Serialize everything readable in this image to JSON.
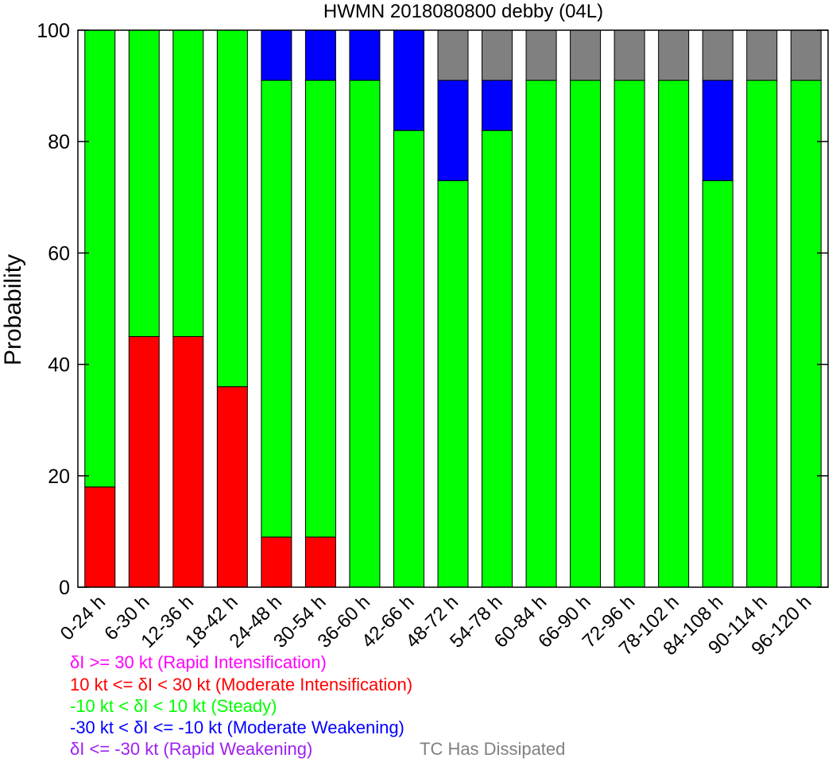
{
  "chart_data": {
    "type": "bar",
    "stacked": true,
    "title": "HWMN 2018080800 debby (04L)",
    "xlabel": "",
    "ylabel": "Probability",
    "ylim": [
      0,
      100
    ],
    "yticks": [
      0,
      20,
      40,
      60,
      80,
      100
    ],
    "grid": false,
    "legend_position": "bottom-left",
    "categories": [
      "0-24 h",
      "6-30 h",
      "12-36 h",
      "18-42 h",
      "24-48 h",
      "30-54 h",
      "36-60 h",
      "42-66 h",
      "48-72 h",
      "54-78 h",
      "60-84 h",
      "66-90 h",
      "72-96 h",
      "78-102 h",
      "84-108 h",
      "90-114 h",
      "96-120 h"
    ],
    "series": [
      {
        "name": "δI >= 30 kt (Rapid Intensification)",
        "color": "#ff00ff",
        "values": [
          0,
          0,
          0,
          0,
          0,
          0,
          0,
          0,
          0,
          0,
          0,
          0,
          0,
          0,
          0,
          0,
          0
        ]
      },
      {
        "name": "10 kt <= δI < 30 kt (Moderate Intensification)",
        "color": "#ff0000",
        "values": [
          18,
          45,
          45,
          36,
          9,
          9,
          0,
          0,
          0,
          0,
          0,
          0,
          0,
          0,
          0,
          0,
          0
        ]
      },
      {
        "name": "-10 kt < δI < 10 kt (Steady)",
        "color": "#00ff00",
        "values": [
          82,
          55,
          55,
          64,
          82,
          82,
          91,
          82,
          73,
          82,
          91,
          91,
          91,
          91,
          73,
          91,
          91
        ]
      },
      {
        "name": "-30 kt < δI <= -10 kt (Moderate Weakening)",
        "color": "#0000ff",
        "values": [
          0,
          0,
          0,
          0,
          9,
          9,
          9,
          18,
          18,
          9,
          0,
          0,
          0,
          0,
          18,
          0,
          0
        ]
      },
      {
        "name": "δI <= -30 kt (Rapid Weakening)",
        "color": "#a020f0",
        "values": [
          0,
          0,
          0,
          0,
          0,
          0,
          0,
          0,
          0,
          0,
          0,
          0,
          0,
          0,
          0,
          0,
          0
        ]
      },
      {
        "name": "TC Has Dissipated",
        "color": "#808080",
        "values": [
          0,
          0,
          0,
          0,
          0,
          0,
          0,
          0,
          9,
          9,
          9,
          9,
          9,
          9,
          9,
          9,
          9
        ]
      }
    ]
  }
}
